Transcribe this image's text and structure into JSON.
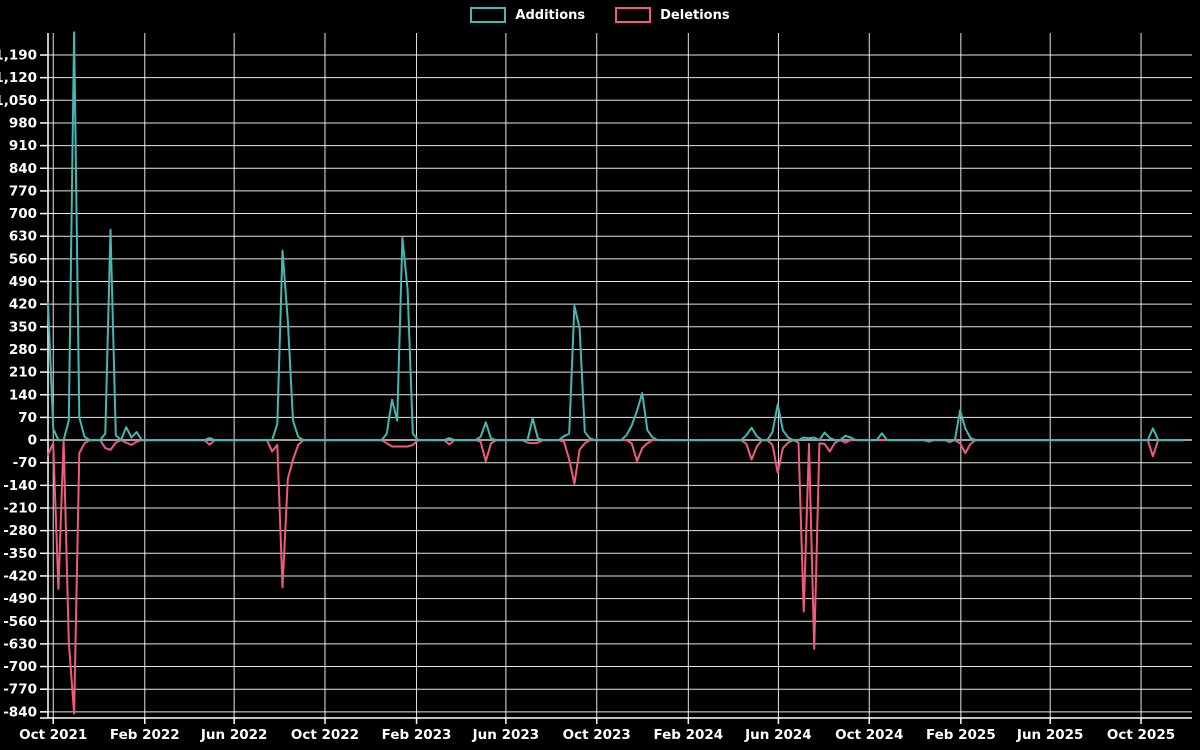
{
  "chart_data": {
    "type": "line",
    "title": "",
    "background_color": "#000000",
    "text_color": "#ffffff",
    "grid_color": "#ffffff",
    "zero_line_color": "#97a1a7",
    "axis_color": "#ffffff",
    "legend": {
      "position": "top-center",
      "entries": [
        {
          "label": "Additions",
          "color": "#45b8b2"
        },
        {
          "label": "Deletions",
          "color": "#f15b78"
        }
      ]
    },
    "x_axis": {
      "interval": "weekly",
      "start_date": "2021-09-24",
      "total_weeks": 218,
      "ticks": [
        {
          "date": "2021-10-01",
          "label": "Oct 2021"
        },
        {
          "date": "2022-02-01",
          "label": "Feb 2022"
        },
        {
          "date": "2022-06-01",
          "label": "Jun 2022"
        },
        {
          "date": "2022-10-01",
          "label": "Oct 2022"
        },
        {
          "date": "2023-02-01",
          "label": "Feb 2023"
        },
        {
          "date": "2023-06-01",
          "label": "Jun 2023"
        },
        {
          "date": "2023-10-01",
          "label": "Oct 2023"
        },
        {
          "date": "2024-02-01",
          "label": "Feb 2024"
        },
        {
          "date": "2024-06-01",
          "label": "Jun 2024"
        },
        {
          "date": "2024-10-01",
          "label": "Oct 2024"
        },
        {
          "date": "2025-02-01",
          "label": "Feb 2025"
        },
        {
          "date": "2025-06-01",
          "label": "Jun 2025"
        },
        {
          "date": "2025-10-01",
          "label": "Oct 2025"
        }
      ]
    },
    "y_axis": {
      "tick_step": 70,
      "range_min": -840,
      "range_max": 1190,
      "ticks": [
        {
          "value": 1190,
          "label": "1,190"
        },
        {
          "value": 1120,
          "label": "1,120"
        },
        {
          "value": 1050,
          "label": "1,050"
        },
        {
          "value": 980,
          "label": "980"
        },
        {
          "value": 910,
          "label": "910"
        },
        {
          "value": 840,
          "label": "840"
        },
        {
          "value": 770,
          "label": "770"
        },
        {
          "value": 700,
          "label": "700"
        },
        {
          "value": 630,
          "label": "630"
        },
        {
          "value": 560,
          "label": "560"
        },
        {
          "value": 490,
          "label": "490"
        },
        {
          "value": 420,
          "label": "420"
        },
        {
          "value": 350,
          "label": "350"
        },
        {
          "value": 280,
          "label": "280"
        },
        {
          "value": 210,
          "label": "210"
        },
        {
          "value": 140,
          "label": "140"
        },
        {
          "value": 70,
          "label": "70"
        },
        {
          "value": 0,
          "label": "0"
        },
        {
          "value": -70,
          "label": "-70"
        },
        {
          "value": -140,
          "label": "-140"
        },
        {
          "value": -210,
          "label": "-210"
        },
        {
          "value": -280,
          "label": "-280"
        },
        {
          "value": -350,
          "label": "-350"
        },
        {
          "value": -420,
          "label": "-420"
        },
        {
          "value": -490,
          "label": "-490"
        },
        {
          "value": -560,
          "label": "-560"
        },
        {
          "value": -630,
          "label": "-630"
        },
        {
          "value": -700,
          "label": "-700"
        },
        {
          "value": -770,
          "label": "-770"
        },
        {
          "value": -840,
          "label": "-840"
        }
      ]
    },
    "series": [
      {
        "name": "Additions",
        "color": "#45b8b2",
        "default": 0,
        "points": {
          "2021-09-24": 425,
          "2021-10-01": 35,
          "2021-10-22": 60,
          "2021-10-29": 1260,
          "2021-11-05": 70,
          "2021-11-12": 10,
          "2021-12-10": 20,
          "2021-12-17": 650,
          "2021-12-24": 15,
          "2022-01-07": 40,
          "2022-01-14": 8,
          "2022-01-21": 25,
          "2022-04-29": 6,
          "2022-07-29": 50,
          "2022-08-05": 585,
          "2022-08-12": 370,
          "2022-08-19": 60,
          "2022-08-26": 10,
          "2022-12-23": 20,
          "2022-12-30": 125,
          "2023-01-06": 60,
          "2023-01-13": 625,
          "2023-01-20": 465,
          "2023-01-27": 20,
          "2023-03-17": 6,
          "2023-04-28": 10,
          "2023-05-05": 55,
          "2023-05-12": 5,
          "2023-07-07": 67,
          "2023-07-14": 5,
          "2023-08-18": 12,
          "2023-08-25": 20,
          "2023-09-01": 415,
          "2023-09-08": 345,
          "2023-09-15": 25,
          "2023-09-22": 5,
          "2023-11-10": 15,
          "2023-11-17": 45,
          "2023-11-24": 90,
          "2023-12-01": 145,
          "2023-12-08": 30,
          "2023-12-15": 8,
          "2024-04-19": 15,
          "2024-04-26": 38,
          "2024-05-03": 12,
          "2024-05-24": 25,
          "2024-05-31": 110,
          "2024-06-07": 30,
          "2024-06-14": 8,
          "2024-07-05": 8,
          "2024-07-12": 5,
          "2024-07-19": 8,
          "2024-08-02": 23,
          "2024-08-09": 6,
          "2024-08-30": 13,
          "2024-09-06": 8,
          "2024-10-18": 21,
          "2025-01-31": 92,
          "2025-02-07": 36,
          "2025-02-14": 6,
          "2025-10-17": 36
        }
      },
      {
        "name": "Deletions",
        "color": "#f15b78",
        "default": 0,
        "points": {
          "2021-09-24": -45,
          "2021-10-01": -10,
          "2021-10-08": -460,
          "2021-10-22": -625,
          "2021-10-29": -845,
          "2021-11-05": -40,
          "2021-11-12": -10,
          "2021-12-10": -25,
          "2021-12-17": -30,
          "2021-12-24": -8,
          "2022-01-07": -8,
          "2022-01-14": -15,
          "2022-01-21": -5,
          "2022-04-29": -14,
          "2022-07-22": -35,
          "2022-07-29": -15,
          "2022-08-05": -455,
          "2022-08-12": -120,
          "2022-08-19": -60,
          "2022-08-26": -15,
          "2022-12-23": -10,
          "2022-12-30": -20,
          "2023-01-06": -20,
          "2023-01-13": -20,
          "2023-01-20": -20,
          "2023-01-27": -15,
          "2023-03-17": -13,
          "2023-04-28": -5,
          "2023-05-05": -65,
          "2023-05-12": -10,
          "2023-06-30": -8,
          "2023-07-07": -10,
          "2023-07-14": -8,
          "2023-08-18": -5,
          "2023-08-25": -60,
          "2023-09-01": -135,
          "2023-09-08": -30,
          "2023-09-15": -10,
          "2023-11-17": -10,
          "2023-11-24": -65,
          "2023-12-01": -25,
          "2023-12-08": -10,
          "2024-04-19": -12,
          "2024-04-26": -60,
          "2024-05-03": -20,
          "2024-05-24": -15,
          "2024-05-31": -100,
          "2024-06-07": -25,
          "2024-06-14": -8,
          "2024-06-28": -8,
          "2024-07-05": -530,
          "2024-07-12": -12,
          "2024-07-19": -645,
          "2024-07-26": -10,
          "2024-08-02": -12,
          "2024-08-09": -35,
          "2024-08-16": -8,
          "2024-08-30": -8,
          "2024-12-20": -5,
          "2025-01-17": -6,
          "2025-01-31": -10,
          "2025-02-07": -40,
          "2025-02-14": -12,
          "2025-10-17": -50
        }
      }
    ]
  }
}
